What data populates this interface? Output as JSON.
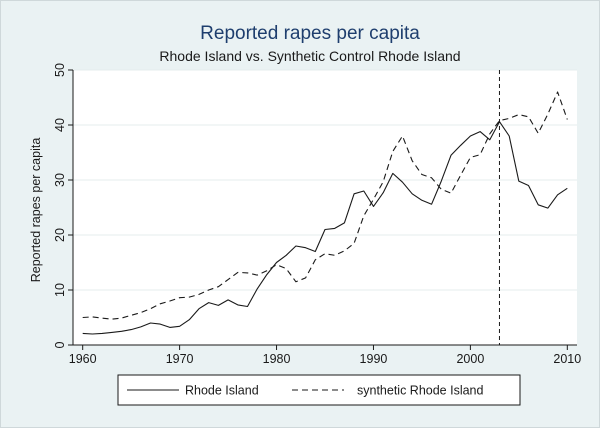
{
  "chart_data": {
    "type": "line",
    "title": "Reported rapes per capita",
    "subtitle": "Rhode Island vs. Synthetic Control Rhode Island",
    "xlabel": "",
    "ylabel": "Reported rapes per capita",
    "xlim": [
      1959,
      2011
    ],
    "ylim": [
      0,
      50
    ],
    "xticks": [
      1960,
      1970,
      1980,
      1990,
      2000,
      2010
    ],
    "yticks": [
      0,
      10,
      20,
      30,
      40,
      50
    ],
    "grid": true,
    "legend": "bottom",
    "reference_line_x": 2003,
    "x": [
      1960,
      1961,
      1962,
      1963,
      1964,
      1965,
      1966,
      1967,
      1968,
      1969,
      1970,
      1971,
      1972,
      1973,
      1974,
      1975,
      1976,
      1977,
      1978,
      1979,
      1980,
      1981,
      1982,
      1983,
      1984,
      1985,
      1986,
      1987,
      1988,
      1989,
      1990,
      1991,
      1992,
      1993,
      1994,
      1995,
      1996,
      1997,
      1998,
      1999,
      2000,
      2001,
      2002,
      2003,
      2004,
      2005,
      2006,
      2007,
      2008,
      2009,
      2010
    ],
    "series": [
      {
        "name": "Rhode Island",
        "style": "solid",
        "values": [
          2.1,
          2.0,
          2.1,
          2.3,
          2.5,
          2.8,
          3.3,
          4.0,
          3.8,
          3.2,
          3.4,
          4.6,
          6.6,
          7.7,
          7.2,
          8.2,
          7.3,
          7.0,
          10.2,
          12.8,
          15.0,
          16.3,
          18.0,
          17.7,
          17.0,
          21.0,
          21.2,
          22.2,
          27.5,
          28.0,
          25.2,
          27.7,
          31.2,
          29.6,
          27.5,
          26.3,
          25.6,
          29.8,
          34.5,
          36.3,
          38.0,
          38.8,
          37.3,
          40.6,
          38.0,
          29.8,
          29.0,
          25.5,
          24.9,
          27.3,
          28.5
        ]
      },
      {
        "name": "synthetic Rhode Island",
        "style": "dashed",
        "values": [
          5.0,
          5.1,
          4.9,
          4.7,
          4.9,
          5.4,
          5.9,
          6.6,
          7.5,
          8.0,
          8.6,
          8.7,
          9.2,
          10.0,
          10.6,
          11.9,
          13.2,
          13.1,
          12.7,
          13.5,
          14.6,
          13.9,
          11.5,
          12.2,
          15.5,
          16.6,
          16.3,
          17.1,
          18.5,
          23.5,
          26.5,
          29.7,
          35.2,
          38.0,
          33.5,
          31.0,
          30.4,
          28.3,
          27.6,
          30.9,
          34.1,
          34.6,
          38.4,
          40.8,
          41.2,
          41.9,
          41.5,
          38.5,
          42.0,
          46.0,
          41.0
        ]
      }
    ]
  },
  "colors": {
    "plot_background": "#ffffff",
    "frame_background": "#eaf2f3",
    "line": "#1a1a1a",
    "grid": "#e4ecee",
    "title": "#1e3e6e"
  }
}
